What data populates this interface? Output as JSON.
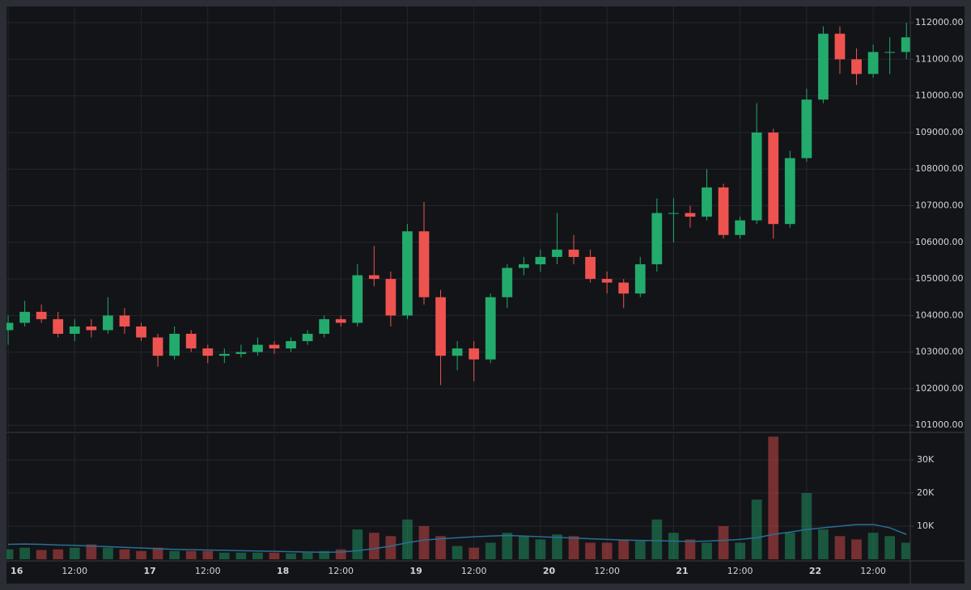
{
  "chart_data": {
    "type": "candlestick",
    "x": [
      0,
      3,
      6,
      9,
      12,
      15,
      18,
      21,
      24,
      27,
      30,
      33,
      36,
      39,
      42,
      45,
      48,
      51,
      54,
      57,
      60,
      63,
      66,
      69,
      72,
      75,
      78,
      81,
      84,
      87,
      90,
      93,
      96,
      99,
      102,
      105,
      108,
      111,
      114,
      117,
      120,
      123,
      126,
      129,
      132,
      135,
      138,
      141,
      144,
      147,
      150,
      153,
      156,
      159,
      162
    ],
    "open": [
      103600,
      103800,
      104100,
      103900,
      103500,
      103700,
      103600,
      104000,
      103700,
      103400,
      102900,
      103500,
      103100,
      102900,
      102950,
      103000,
      103200,
      103100,
      103300,
      103500,
      103900,
      103800,
      105100,
      105000,
      104000,
      106300,
      104500,
      102900,
      103100,
      102800,
      104500,
      105300,
      105400,
      105600,
      105800,
      105600,
      105000,
      104900,
      104600,
      105400,
      106800,
      106800,
      106700,
      107500,
      106200,
      106600,
      109000,
      106500,
      108300,
      109900,
      111700,
      111000,
      110600,
      111200,
      111200
    ],
    "high": [
      104000,
      104400,
      104300,
      104100,
      103900,
      103900,
      104500,
      104200,
      103800,
      103500,
      103700,
      103600,
      103200,
      103100,
      103200,
      103400,
      103300,
      103400,
      103600,
      104000,
      104000,
      105400,
      105900,
      105200,
      106500,
      107100,
      104700,
      103300,
      103300,
      104600,
      105400,
      105600,
      105800,
      106800,
      106200,
      105800,
      105200,
      105000,
      105600,
      107200,
      107200,
      107000,
      108000,
      107600,
      106700,
      109800,
      109100,
      108500,
      110200,
      111900,
      111900,
      111300,
      111400,
      111600,
      112000
    ],
    "low": [
      103200,
      103700,
      103800,
      103400,
      103300,
      103400,
      103500,
      103500,
      103300,
      102600,
      102800,
      103000,
      102700,
      102700,
      102850,
      102900,
      102950,
      103000,
      103200,
      103400,
      103700,
      103700,
      104800,
      103700,
      103900,
      104300,
      102100,
      102500,
      102200,
      102700,
      104200,
      105100,
      105200,
      105400,
      105400,
      104900,
      104600,
      104200,
      104500,
      105200,
      106000,
      106400,
      106600,
      106100,
      106100,
      106500,
      106100,
      106400,
      108200,
      109800,
      110600,
      110300,
      110500,
      110600,
      111000
    ],
    "close": [
      103800,
      104100,
      103900,
      103500,
      103700,
      103600,
      104000,
      103700,
      103400,
      102900,
      103500,
      103100,
      102900,
      102950,
      103000,
      103200,
      103100,
      103300,
      103500,
      103900,
      103800,
      105100,
      105000,
      104000,
      106300,
      104500,
      102900,
      103100,
      102800,
      104500,
      105300,
      105400,
      105600,
      105800,
      105600,
      105000,
      104900,
      104600,
      105400,
      106800,
      106800,
      106700,
      107500,
      106200,
      106600,
      109000,
      106500,
      108300,
      109900,
      111700,
      111000,
      110600,
      111200,
      111200,
      111600
    ],
    "volume": [
      3000,
      3500,
      2800,
      3000,
      3500,
      4500,
      3500,
      3000,
      2500,
      3500,
      2500,
      2500,
      2500,
      2000,
      2000,
      2000,
      2000,
      1800,
      2000,
      2500,
      3000,
      9000,
      8000,
      7000,
      12000,
      10000,
      7000,
      4000,
      3500,
      5000,
      8000,
      7000,
      6000,
      7500,
      7000,
      5000,
      5000,
      6000,
      5500,
      12000,
      8000,
      6000,
      5000,
      10000,
      5000,
      18000,
      37000,
      8000,
      20000,
      9000,
      7000,
      6000,
      8000,
      7000,
      5000
    ],
    "volume_ma": [
      4500,
      4600,
      4500,
      4300,
      4200,
      4000,
      3800,
      3600,
      3400,
      3200,
      3000,
      2900,
      2800,
      2700,
      2600,
      2500,
      2400,
      2300,
      2200,
      2100,
      2200,
      2600,
      3200,
      4000,
      5000,
      5800,
      6200,
      6500,
      6800,
      7000,
      7200,
      7000,
      6800,
      6600,
      6400,
      6200,
      6000,
      5800,
      5700,
      5600,
      5500,
      5400,
      5500,
      5700,
      6000,
      6500,
      7500,
      8200,
      9000,
      9500,
      10000,
      10500,
      10500,
      9500,
      7500
    ],
    "up_color": "#22ab6c",
    "down_color": "#ef5350",
    "volume_ma_color": "#2a6f97",
    "xlim": [
      -0.3,
      162.7
    ],
    "xticks": [
      {
        "value": 0,
        "label": "16"
      },
      {
        "value": 12,
        "label": "12:00"
      },
      {
        "value": 24,
        "label": "17"
      },
      {
        "value": 36,
        "label": "12:00"
      },
      {
        "value": 48,
        "label": "18"
      },
      {
        "value": 60,
        "label": "12:00"
      },
      {
        "value": 72,
        "label": "19"
      },
      {
        "value": 84,
        "label": "12:00"
      },
      {
        "value": 96,
        "label": "20"
      },
      {
        "value": 108,
        "label": "12:00"
      },
      {
        "value": 120,
        "label": "21"
      },
      {
        "value": 132,
        "label": "12:00"
      },
      {
        "value": 144,
        "label": "22"
      },
      {
        "value": 156,
        "label": "12:00"
      }
    ],
    "ylim": [
      100850,
      112400
    ],
    "yticks": [
      {
        "value": 101000,
        "label": "101000.00"
      },
      {
        "value": 102000,
        "label": "102000.00"
      },
      {
        "value": 103000,
        "label": "103000.00"
      },
      {
        "value": 104000,
        "label": "104000.00"
      },
      {
        "value": 105000,
        "label": "105000.00"
      },
      {
        "value": 106000,
        "label": "106000.00"
      },
      {
        "value": 107000,
        "label": "107000.00"
      },
      {
        "value": 108000,
        "label": "108000.00"
      },
      {
        "value": 109000,
        "label": "109000.00"
      },
      {
        "value": 110000,
        "label": "110000.00"
      },
      {
        "value": 111000,
        "label": "111000.00"
      },
      {
        "value": 112000,
        "label": "112000.00"
      }
    ],
    "volume_ylim": [
      0,
      37800
    ],
    "volume_yticks": [
      {
        "value": 10000,
        "label": "10K"
      },
      {
        "value": 20000,
        "label": "20K"
      },
      {
        "value": 30000,
        "label": "30K"
      }
    ],
    "grid": true
  }
}
